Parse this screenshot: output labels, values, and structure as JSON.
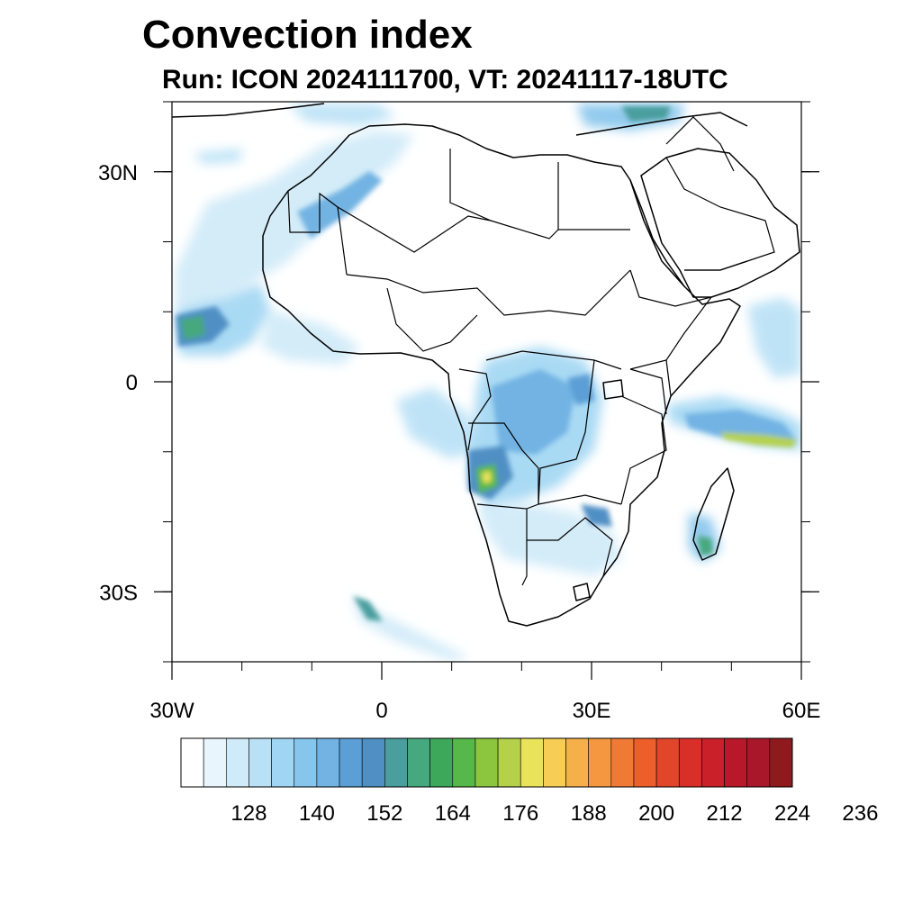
{
  "header": {
    "title": "Convection index",
    "subtitle": "Run: ICON 2024111700,  VT: 20241117-18UTC"
  },
  "map": {
    "region": "Africa",
    "lon_range": [
      -30,
      60
    ],
    "lat_range": [
      -40,
      40
    ],
    "lon_tick_labels": [
      {
        "lon": -30,
        "label": "30W"
      },
      {
        "lon": 0,
        "label": "0"
      },
      {
        "lon": 30,
        "label": "30E"
      },
      {
        "lon": 60,
        "label": "60E"
      }
    ],
    "lat_tick_labels": [
      {
        "lat": 30,
        "label": "30N"
      },
      {
        "lat": 0,
        "label": "0"
      },
      {
        "lat": -30,
        "label": "30S"
      }
    ],
    "minor_lon_ticks": [
      -30,
      -20,
      -10,
      0,
      10,
      20,
      30,
      40,
      50,
      60
    ],
    "minor_lat_ticks": [
      -40,
      -30,
      -20,
      -10,
      0,
      10,
      20,
      30,
      40
    ]
  },
  "colorbar": {
    "colors": [
      "#ffffff",
      "#e8f5fc",
      "#cfeaf8",
      "#b9e1f6",
      "#a0d6f3",
      "#86c5ec",
      "#72b3e3",
      "#5c9fd6",
      "#4f8fc4",
      "#4a9e9e",
      "#46a87e",
      "#3ea85a",
      "#56b84a",
      "#8cc63e",
      "#b5d14a",
      "#e9e35a",
      "#f8cd55",
      "#f6b04a",
      "#f59640",
      "#f07a34",
      "#ec5f2b",
      "#e2462a",
      "#d83028",
      "#c92029",
      "#b8182a",
      "#a8172a",
      "#8e1a1d"
    ],
    "labels": [
      "128",
      "140",
      "152",
      "164",
      "176",
      "188",
      "200",
      "212",
      "224",
      "236"
    ]
  }
}
